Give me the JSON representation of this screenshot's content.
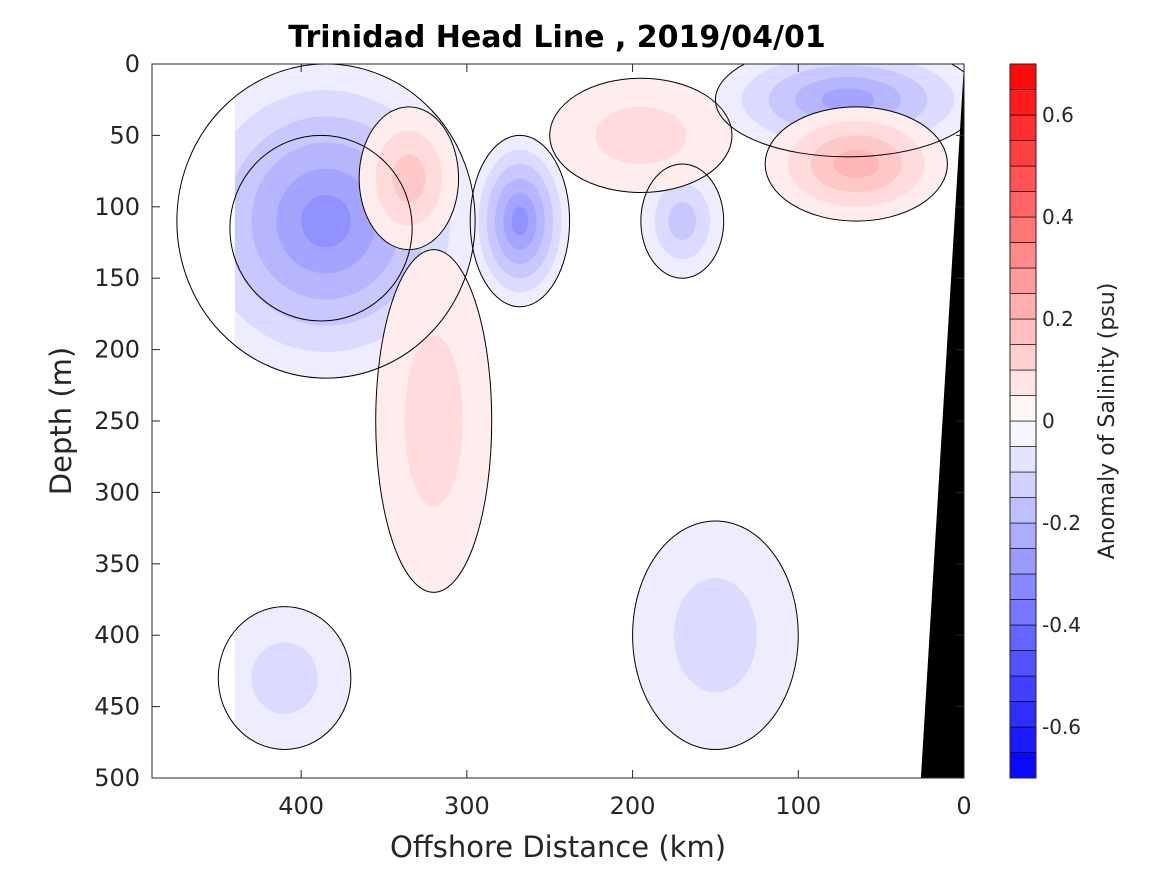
{
  "chart_data": {
    "type": "contour",
    "title": "Trinidad Head Line , 2019/04/01",
    "xlabel": "Offshore Distance (km)",
    "ylabel": "Depth (m)",
    "xlim": [
      490,
      0
    ],
    "ylim": [
      0,
      500
    ],
    "x_reversed": true,
    "y_reversed": true,
    "x_ticks": [
      400,
      300,
      200,
      100,
      0
    ],
    "x_tick_labels": [
      "400",
      "300",
      "200",
      "100",
      "0"
    ],
    "y_ticks": [
      0,
      50,
      100,
      150,
      200,
      250,
      300,
      350,
      400,
      450,
      500
    ],
    "y_tick_labels": [
      "0",
      "50",
      "100",
      "150",
      "200",
      "250",
      "300",
      "350",
      "400",
      "450",
      "500"
    ],
    "colorbar": {
      "label": "Anomaly of Salinity (psu)",
      "range": [
        -0.7,
        0.7
      ],
      "step": 0.05,
      "ticks": [
        -0.6,
        -0.4,
        -0.2,
        0,
        0.2,
        0.4,
        0.6
      ],
      "tick_labels": [
        "-0.6",
        "-0.4",
        "-0.2",
        "0",
        "0.2",
        "0.4",
        "0.6"
      ],
      "min_color": "#0000ff",
      "max_color": "#ff0000"
    },
    "data_extent_x": [
      440,
      0
    ],
    "features": [
      {
        "kind": "negative",
        "center": [
          388,
          115
        ],
        "radii": [
          55,
          65
        ],
        "value": -0.55
      },
      {
        "kind": "negative",
        "center": [
          385,
          110
        ],
        "radii": [
          90,
          110
        ],
        "value": -0.3
      },
      {
        "kind": "negative",
        "center": [
          70,
          25
        ],
        "radii": [
          80,
          40
        ],
        "value": -0.25
      },
      {
        "kind": "negative",
        "center": [
          268,
          110
        ],
        "radii": [
          30,
          60
        ],
        "value": -0.3
      },
      {
        "kind": "negative",
        "center": [
          170,
          110
        ],
        "radii": [
          25,
          40
        ],
        "value": -0.15
      },
      {
        "kind": "negative",
        "center": [
          150,
          400
        ],
        "radii": [
          50,
          80
        ],
        "value": -0.08
      },
      {
        "kind": "negative",
        "center": [
          410,
          430
        ],
        "radii": [
          40,
          50
        ],
        "value": -0.08
      },
      {
        "kind": "positive",
        "center": [
          335,
          80
        ],
        "radii": [
          30,
          50
        ],
        "value": 0.15
      },
      {
        "kind": "positive",
        "center": [
          320,
          250
        ],
        "radii": [
          35,
          120
        ],
        "value": 0.1
      },
      {
        "kind": "positive",
        "center": [
          195,
          50
        ],
        "radii": [
          55,
          40
        ],
        "value": 0.1
      },
      {
        "kind": "positive",
        "center": [
          65,
          70
        ],
        "radii": [
          55,
          40
        ],
        "value": 0.2
      }
    ],
    "land_mask": {
      "color": "#000000",
      "top_x": 0,
      "bottom_x": 26
    },
    "zero_contour_color": "#000000"
  }
}
